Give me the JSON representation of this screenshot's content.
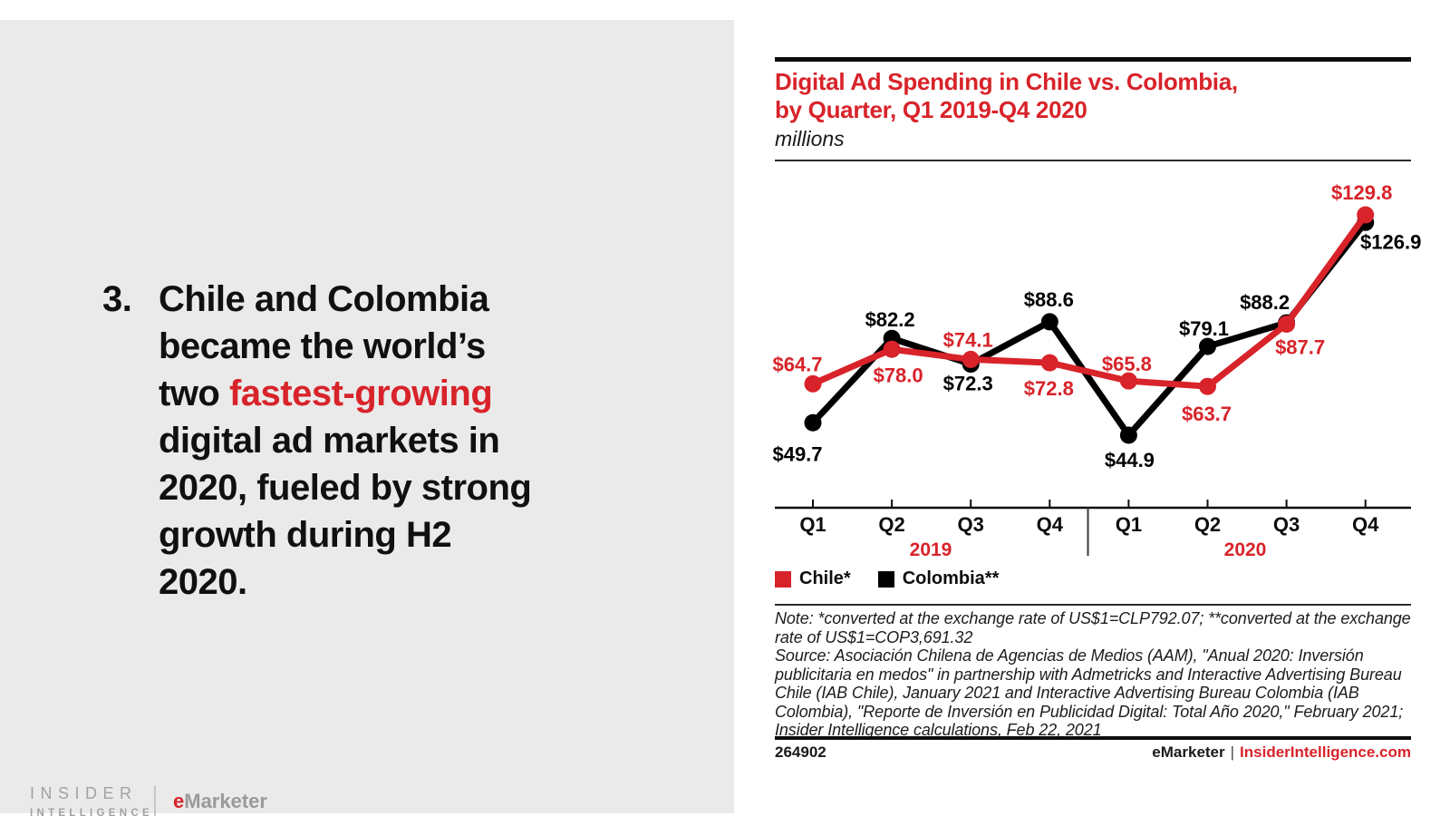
{
  "colors": {
    "accent_red": "#d8232a",
    "colombia_black": "#000000",
    "panel_gray": "#eaeaea"
  },
  "left_panel": {
    "number": "3.",
    "highlight": "fastest-growing",
    "lines": [
      "Chile and Colombia",
      "became the world’s",
      "two fastest-growing",
      "digital ad markets in",
      "2020, fueled by strong",
      "growth during H2",
      "2020."
    ]
  },
  "branding": {
    "insider_line1": "INSIDER",
    "insider_line2": "INTELLIGENCE",
    "emarketer_e": "e",
    "emarketer_rest": "Marketer"
  },
  "chart": {
    "title_line1": "Digital Ad Spending in Chile vs. Colombia,",
    "title_line2": "by Quarter, Q1 2019-Q4 2020",
    "subtitle": "millions"
  },
  "chart_data": {
    "type": "line",
    "title": "Digital Ad Spending in Chile vs. Colombia, by Quarter, Q1 2019-Q4 2020",
    "subtitle": "millions",
    "value_prefix": "$",
    "categories": [
      "Q1",
      "Q2",
      "Q3",
      "Q4",
      "Q1",
      "Q2",
      "Q3",
      "Q4"
    ],
    "year_groups": [
      "2019",
      "2020"
    ],
    "series": [
      {
        "name": "Chile*",
        "color": "#d8232a",
        "values": [
          64.7,
          78.0,
          74.1,
          72.8,
          65.8,
          63.7,
          87.7,
          129.8
        ]
      },
      {
        "name": "Colombia**",
        "color": "#000000",
        "values": [
          49.7,
          82.2,
          72.3,
          88.6,
          44.9,
          79.1,
          88.2,
          126.9
        ]
      }
    ],
    "legend_position": "bottom-left",
    "grid": false
  },
  "notes": {
    "note": "Note: *converted at the exchange rate of US$1=CLP792.07; **converted at the exchange rate of US$1=COP3,691.32",
    "source": "Source: Asociación Chilena de Agencias de Medios (AAM), \"Anual 2020: Inversión publicitaria en medos\" in partnership with Admetricks and Interactive Advertising Bureau Chile (IAB Chile), January 2021 and Interactive Advertising Bureau Colombia (IAB Colombia), \"Reporte de Inversión en Publicidad Digital: Total Año 2020,\" February 2021; Insider Intelligence calculations, Feb 22, 2021"
  },
  "footer": {
    "chart_id": "264902",
    "brand_left": "eMarketer",
    "separator": "|",
    "brand_right": "InsiderIntelligence.com"
  }
}
